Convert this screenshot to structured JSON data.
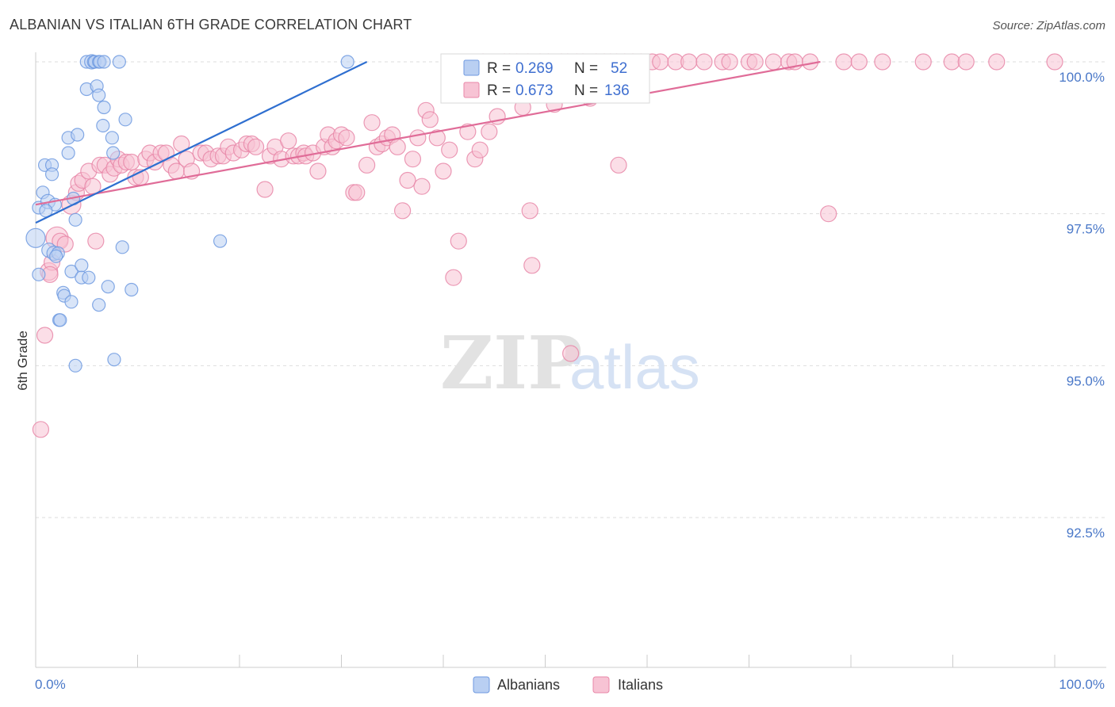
{
  "header": {
    "title": "ALBANIAN VS ITALIAN 6TH GRADE CORRELATION CHART",
    "source": "Source: ZipAtlas.com"
  },
  "colors": {
    "albanians": "#6f9ae0",
    "albanians_fill": "#b9cff2",
    "albanians_line": "#2f6fd0",
    "italians": "#e887a8",
    "italians_fill": "#f7c3d4",
    "italians_line": "#e06c98",
    "axis_text": "#4a78c8",
    "grid": "#dddddd"
  },
  "chart_data": {
    "type": "scatter",
    "ylabel": "6th Grade",
    "xlim": [
      0,
      100
    ],
    "ylim": [
      90.2,
      100.25
    ],
    "x_tick_labels": [
      "0.0%",
      "100.0%"
    ],
    "y_ticks": [
      100.0,
      97.5,
      95.0,
      92.5
    ],
    "y_tick_labels": [
      "100.0%",
      "97.5%",
      "95.0%",
      "92.5%"
    ],
    "legend": {
      "placement": "top-center",
      "rows": [
        {
          "series": "Albanians",
          "r_label": "R =",
          "r_value": "0.269",
          "n_label": "N =",
          "n_value": "52"
        },
        {
          "series": "Italians",
          "r_label": "R =",
          "r_value": "0.673",
          "n_label": "N =",
          "n_value": "136"
        }
      ]
    },
    "series": [
      {
        "name": "Albanians",
        "trend": {
          "x": [
            0.0,
            32.5
          ],
          "y": [
            97.35,
            100.0
          ]
        },
        "points": [
          [
            0.0,
            97.1,
            12
          ],
          [
            0.3,
            96.5,
            8
          ],
          [
            0.3,
            97.6,
            8
          ],
          [
            0.7,
            97.85,
            8
          ],
          [
            0.9,
            98.3,
            8
          ],
          [
            1.2,
            97.7,
            9
          ],
          [
            1.3,
            96.9,
            9
          ],
          [
            1.6,
            98.3,
            8
          ],
          [
            1.6,
            98.15,
            8
          ],
          [
            1.8,
            96.85,
            9
          ],
          [
            1.9,
            97.65,
            8
          ],
          [
            2.2,
            96.85,
            8
          ],
          [
            2.3,
            95.75,
            8
          ],
          [
            2.4,
            95.75,
            8
          ],
          [
            2.7,
            96.2,
            8
          ],
          [
            2.8,
            96.15,
            8
          ],
          [
            3.2,
            98.75,
            8
          ],
          [
            3.2,
            98.5,
            8
          ],
          [
            3.5,
            96.05,
            8
          ],
          [
            3.5,
            96.55,
            8
          ],
          [
            3.7,
            97.75,
            8
          ],
          [
            3.9,
            97.4,
            8
          ],
          [
            3.9,
            95.0,
            8
          ],
          [
            4.1,
            98.8,
            8
          ],
          [
            4.5,
            96.65,
            8
          ],
          [
            4.5,
            96.45,
            8
          ],
          [
            5.0,
            99.55,
            8
          ],
          [
            5.0,
            100.0,
            8
          ],
          [
            5.2,
            96.45,
            8
          ],
          [
            5.5,
            100.0,
            9
          ],
          [
            5.7,
            100.0,
            8
          ],
          [
            5.8,
            100.0,
            8
          ],
          [
            6.0,
            99.6,
            8
          ],
          [
            6.2,
            100.0,
            8
          ],
          [
            6.2,
            99.45,
            8
          ],
          [
            6.2,
            96.0,
            8
          ],
          [
            6.3,
            100.0,
            8
          ],
          [
            6.6,
            98.95,
            8
          ],
          [
            6.7,
            99.25,
            8
          ],
          [
            6.7,
            100.0,
            8
          ],
          [
            7.1,
            96.3,
            8
          ],
          [
            7.5,
            98.75,
            8
          ],
          [
            7.6,
            98.5,
            8
          ],
          [
            7.7,
            95.1,
            8
          ],
          [
            8.2,
            100.0,
            8
          ],
          [
            8.5,
            96.95,
            8
          ],
          [
            8.8,
            99.05,
            8
          ],
          [
            9.4,
            96.25,
            8
          ],
          [
            18.1,
            97.05,
            8
          ],
          [
            30.6,
            100.0,
            8
          ],
          [
            1.0,
            97.55,
            8
          ],
          [
            2.0,
            96.8,
            8
          ]
        ]
      },
      {
        "name": "Italians",
        "trend": {
          "x": [
            0.0,
            77.0
          ],
          "y": [
            97.65,
            100.0
          ]
        },
        "points": [
          [
            0.5,
            93.95,
            10
          ],
          [
            0.9,
            95.5,
            10
          ],
          [
            1.3,
            96.55,
            11
          ],
          [
            1.6,
            96.7,
            10
          ],
          [
            2.1,
            97.1,
            14
          ],
          [
            2.4,
            97.05,
            10
          ],
          [
            3.5,
            97.65,
            12
          ],
          [
            4.0,
            97.85,
            10
          ],
          [
            4.2,
            98.0,
            10
          ],
          [
            4.6,
            98.05,
            10
          ],
          [
            5.2,
            98.2,
            10
          ],
          [
            5.6,
            97.95,
            10
          ],
          [
            5.9,
            97.05,
            10
          ],
          [
            6.3,
            98.3,
            10
          ],
          [
            6.8,
            98.3,
            10
          ],
          [
            7.3,
            98.15,
            10
          ],
          [
            7.7,
            98.25,
            10
          ],
          [
            8.1,
            98.4,
            10
          ],
          [
            8.4,
            98.3,
            10
          ],
          [
            8.9,
            98.35,
            10
          ],
          [
            9.4,
            98.35,
            10
          ],
          [
            9.8,
            98.1,
            10
          ],
          [
            10.3,
            98.1,
            10
          ],
          [
            10.8,
            98.4,
            10
          ],
          [
            11.2,
            98.5,
            10
          ],
          [
            11.7,
            98.35,
            10
          ],
          [
            12.3,
            98.5,
            10
          ],
          [
            12.8,
            98.5,
            10
          ],
          [
            13.3,
            98.3,
            10
          ],
          [
            13.8,
            98.2,
            10
          ],
          [
            14.3,
            98.65,
            10
          ],
          [
            14.8,
            98.4,
            10
          ],
          [
            15.3,
            98.2,
            10
          ],
          [
            16.2,
            98.5,
            10
          ],
          [
            16.7,
            98.5,
            10
          ],
          [
            17.2,
            98.4,
            10
          ],
          [
            17.9,
            98.45,
            10
          ],
          [
            18.4,
            98.45,
            10
          ],
          [
            18.9,
            98.6,
            10
          ],
          [
            19.4,
            98.5,
            10
          ],
          [
            20.2,
            98.55,
            10
          ],
          [
            20.7,
            98.65,
            10
          ],
          [
            21.2,
            98.65,
            10
          ],
          [
            21.6,
            98.6,
            10
          ],
          [
            22.5,
            97.9,
            10
          ],
          [
            23.0,
            98.45,
            10
          ],
          [
            23.5,
            98.6,
            10
          ],
          [
            24.1,
            98.4,
            10
          ],
          [
            24.8,
            98.7,
            10
          ],
          [
            25.3,
            98.45,
            10
          ],
          [
            25.8,
            98.45,
            10
          ],
          [
            26.3,
            98.5,
            10
          ],
          [
            26.5,
            98.45,
            10
          ],
          [
            27.2,
            98.5,
            10
          ],
          [
            27.7,
            98.2,
            10
          ],
          [
            28.3,
            98.6,
            10
          ],
          [
            28.7,
            98.8,
            10
          ],
          [
            29.1,
            98.6,
            10
          ],
          [
            29.5,
            98.7,
            10
          ],
          [
            30.0,
            98.8,
            10
          ],
          [
            30.5,
            98.75,
            10
          ],
          [
            31.2,
            97.85,
            10
          ],
          [
            31.5,
            97.85,
            10
          ],
          [
            32.5,
            98.3,
            10
          ],
          [
            33.0,
            99.0,
            10
          ],
          [
            33.5,
            98.6,
            10
          ],
          [
            34.0,
            98.65,
            10
          ],
          [
            34.5,
            98.75,
            10
          ],
          [
            35.0,
            98.8,
            10
          ],
          [
            35.5,
            98.6,
            10
          ],
          [
            36.0,
            97.55,
            10
          ],
          [
            36.5,
            98.05,
            10
          ],
          [
            37.0,
            98.4,
            10
          ],
          [
            37.5,
            98.75,
            10
          ],
          [
            37.9,
            97.95,
            10
          ],
          [
            38.3,
            99.2,
            10
          ],
          [
            38.7,
            99.05,
            10
          ],
          [
            39.4,
            98.75,
            10
          ],
          [
            40.0,
            98.2,
            10
          ],
          [
            40.6,
            98.55,
            10
          ],
          [
            41.0,
            96.45,
            10
          ],
          [
            41.5,
            97.05,
            10
          ],
          [
            42.4,
            98.85,
            10
          ],
          [
            43.1,
            98.4,
            10
          ],
          [
            43.6,
            98.55,
            10
          ],
          [
            43.9,
            100.0,
            10
          ],
          [
            44.5,
            98.85,
            10
          ],
          [
            45.3,
            99.1,
            10
          ],
          [
            46.0,
            100.0,
            10
          ],
          [
            46.5,
            100.0,
            10
          ],
          [
            47.2,
            100.0,
            10
          ],
          [
            47.8,
            99.25,
            10
          ],
          [
            48.3,
            100.0,
            10
          ],
          [
            48.5,
            97.55,
            10
          ],
          [
            48.7,
            96.65,
            10
          ],
          [
            49.5,
            100.0,
            10
          ],
          [
            50.3,
            100.0,
            10
          ],
          [
            50.9,
            99.3,
            10
          ],
          [
            51.6,
            100.0,
            10
          ],
          [
            52.2,
            100.0,
            10
          ],
          [
            52.5,
            95.2,
            10
          ],
          [
            53.1,
            100.0,
            10
          ],
          [
            53.7,
            100.0,
            10
          ],
          [
            54.4,
            99.4,
            10
          ],
          [
            55.0,
            100.0,
            10
          ],
          [
            55.8,
            100.0,
            10
          ],
          [
            56.4,
            100.0,
            10
          ],
          [
            57.0,
            100.0,
            10
          ],
          [
            57.2,
            98.3,
            10
          ],
          [
            57.8,
            100.0,
            10
          ],
          [
            58.6,
            100.0,
            10
          ],
          [
            59.4,
            100.0,
            10
          ],
          [
            60.5,
            100.0,
            10
          ],
          [
            61.3,
            100.0,
            10
          ],
          [
            62.8,
            100.0,
            10
          ],
          [
            64.1,
            100.0,
            10
          ],
          [
            65.6,
            100.0,
            10
          ],
          [
            67.4,
            100.0,
            10
          ],
          [
            68.1,
            100.0,
            10
          ],
          [
            70.0,
            100.0,
            10
          ],
          [
            70.6,
            100.0,
            10
          ],
          [
            72.4,
            100.0,
            10
          ],
          [
            73.9,
            100.0,
            10
          ],
          [
            74.5,
            100.0,
            10
          ],
          [
            76.0,
            100.0,
            10
          ],
          [
            77.8,
            97.5,
            10
          ],
          [
            79.3,
            100.0,
            10
          ],
          [
            80.8,
            100.0,
            10
          ],
          [
            83.1,
            100.0,
            10
          ],
          [
            87.1,
            100.0,
            10
          ],
          [
            89.9,
            100.0,
            10
          ],
          [
            91.3,
            100.0,
            10
          ],
          [
            94.3,
            100.0,
            10
          ],
          [
            100.0,
            100.0,
            10
          ],
          [
            2.9,
            97.0,
            10
          ],
          [
            1.4,
            96.5,
            10
          ]
        ]
      }
    ],
    "bottom_legend": [
      "Albanians",
      "Italians"
    ]
  }
}
